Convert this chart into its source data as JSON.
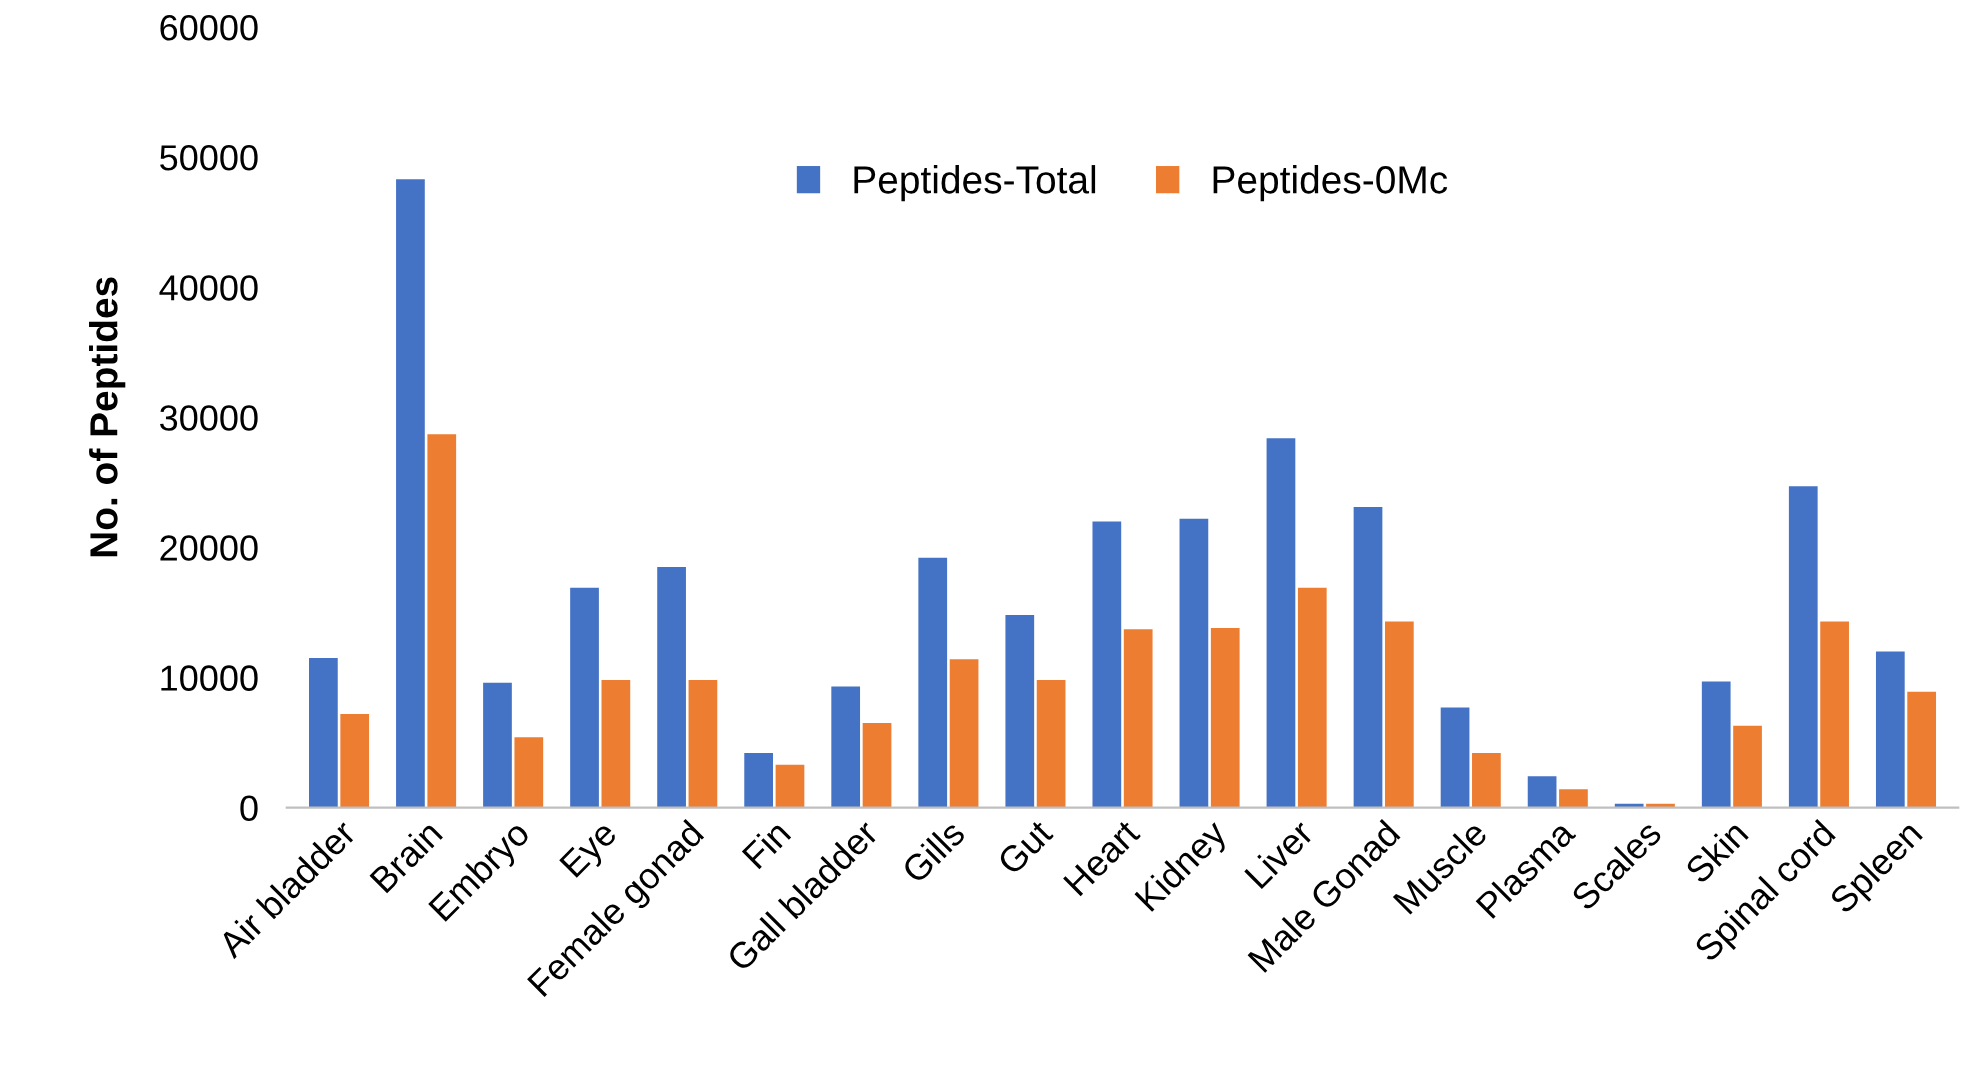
{
  "chart_data": {
    "type": "bar",
    "ylabel": "No. of Peptides",
    "categories": [
      "Air bladder",
      "Brain",
      "Embryo",
      "Eye",
      "Female gonad",
      "Fin",
      "Gall bladder",
      "Gills",
      "Gut",
      "Heart",
      "Kidney",
      "Liver",
      "Male Gonad",
      "Muscle",
      "Plasma",
      "Scales",
      "Skin",
      "Spinal cord",
      "Spleen"
    ],
    "series": [
      {
        "name": "Peptides-Total",
        "color": "#4472c4",
        "values": [
          11500,
          48300,
          9600,
          16900,
          18500,
          4200,
          9300,
          19200,
          14800,
          22000,
          22200,
          28400,
          23100,
          7700,
          2400,
          300,
          9700,
          24700,
          12000
        ]
      },
      {
        "name": "Peptides-0Mc",
        "color": "#ed7d31",
        "values": [
          7200,
          28700,
          5400,
          9800,
          9800,
          3300,
          6500,
          11400,
          9800,
          13700,
          13800,
          16900,
          14300,
          4200,
          1400,
          300,
          6300,
          14300,
          8900
        ]
      }
    ],
    "ylim": [
      0,
      60000
    ],
    "yticks": [
      0,
      10000,
      20000,
      30000,
      40000,
      50000,
      60000
    ],
    "grid": false,
    "legend": "top"
  }
}
